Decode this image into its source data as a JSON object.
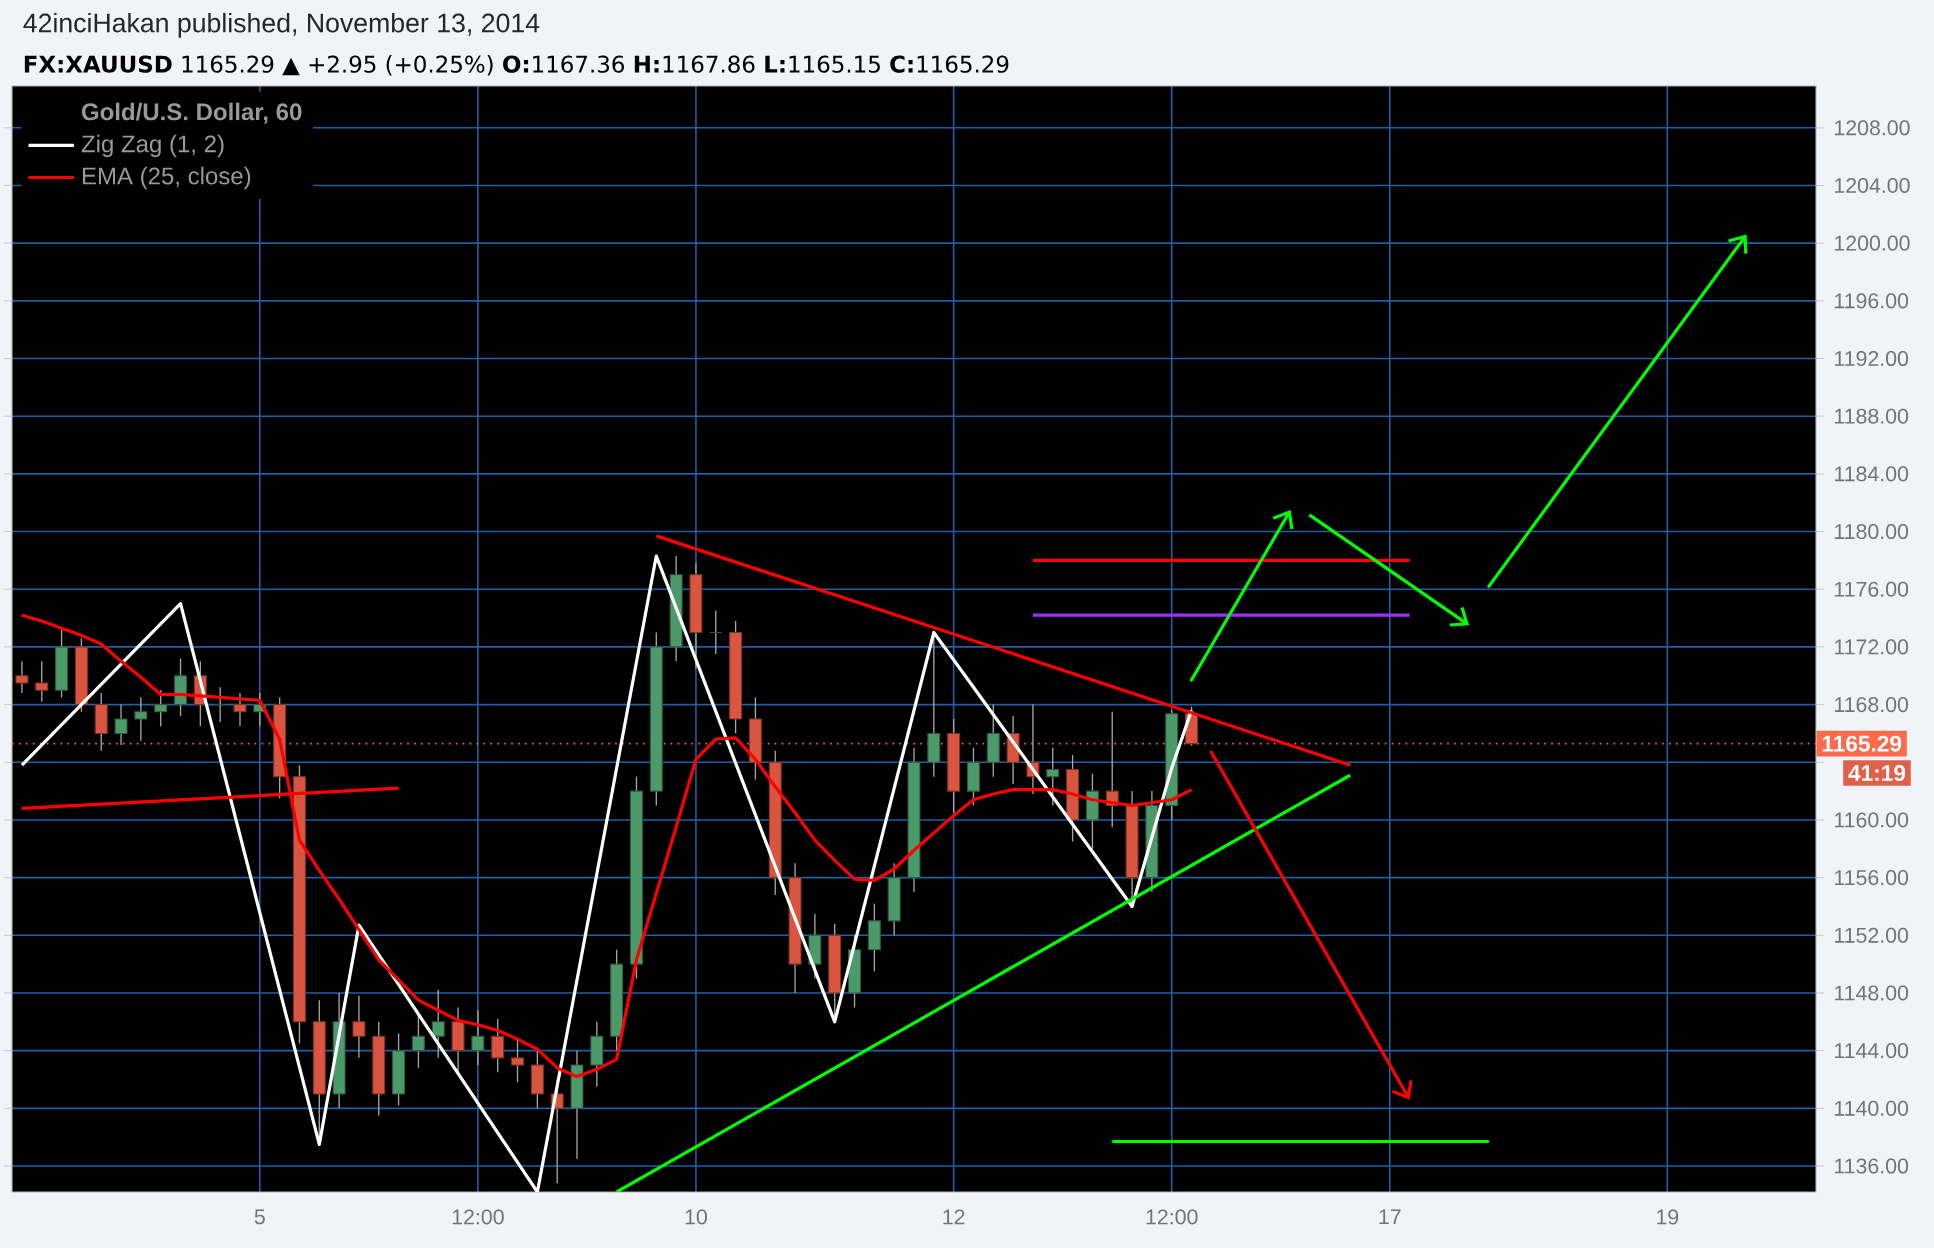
{
  "chart_data": {
    "type": "candlestick",
    "subtitle": "42inciHakan published, November 13, 2014",
    "title": "**FX:XAUUSD** 1165.29 ▲ +2.95 (+0.25%) **O:**1167.36 **H:**1167.86 **L:**1165.15 **C:**1165.29",
    "legend_title": "Gold/U.S. Dollar, 60",
    "legend": "top left",
    "grid": true,
    "ylim": [
      1134.2,
      1210.9
    ],
    "yticks": [
      {
        "value": 1136,
        "label": "1136.00"
      },
      {
        "value": 1140,
        "label": "1140.00"
      },
      {
        "value": 1144,
        "label": "1144.00"
      },
      {
        "value": 1148,
        "label": "1148.00"
      },
      {
        "value": 1152,
        "label": "1152.00"
      },
      {
        "value": 1156,
        "label": "1156.00"
      },
      {
        "value": 1160,
        "label": "1160.00"
      },
      {
        "value": 1164,
        "label": null
      },
      {
        "value": 1168,
        "label": "1168.00"
      },
      {
        "value": 1172,
        "label": "1172.00"
      },
      {
        "value": 1176,
        "label": "1176.00"
      },
      {
        "value": 1180,
        "label": "1180.00"
      },
      {
        "value": 1184,
        "label": "1184.00"
      },
      {
        "value": 1188,
        "label": "1188.00"
      },
      {
        "value": 1192,
        "label": "1192.00"
      },
      {
        "value": 1196,
        "label": "1196.00"
      },
      {
        "value": 1200,
        "label": "1200.00"
      },
      {
        "value": 1204,
        "label": "1204.00"
      },
      {
        "value": 1208,
        "label": "1208.00"
      }
    ],
    "categories": [
      null,
      null,
      null,
      null,
      null,
      null,
      null,
      null,
      null,
      null,
      null,
      null,
      "5",
      null,
      null,
      null,
      null,
      null,
      null,
      null,
      null,
      null,
      null,
      "12:00",
      null,
      null,
      null,
      null,
      null,
      null,
      null,
      null,
      null,
      null,
      "10",
      null,
      null,
      null,
      null,
      null,
      null,
      null,
      null,
      null,
      null,
      null,
      null,
      "12",
      null,
      null,
      null,
      null,
      null,
      null,
      null,
      null,
      null,
      null,
      "12:00",
      null,
      null,
      null,
      null,
      null,
      null,
      null,
      null,
      null,
      null,
      "17",
      null,
      null,
      null,
      null,
      null,
      null,
      null,
      null,
      null,
      null,
      null,
      null,
      null,
      "19",
      null,
      null,
      null,
      null,
      null,
      null,
      null
    ],
    "ohlc": [
      [
        1170,
        1171,
        1168.8,
        1169.5
      ],
      [
        1169.5,
        1171,
        1168.2,
        1169
      ],
      [
        1169,
        1173.2,
        1168.5,
        1172
      ],
      [
        1172,
        1172.6,
        1167.5,
        1168
      ],
      [
        1168,
        1168.8,
        1164.8,
        1166
      ],
      [
        1166,
        1168,
        1165.2,
        1167
      ],
      [
        1167,
        1168.5,
        1165.5,
        1167.5
      ],
      [
        1167.5,
        1169,
        1166.5,
        1168
      ],
      [
        1168,
        1171.2,
        1167.2,
        1170
      ],
      [
        1170,
        1171,
        1166.5,
        1168
      ],
      [
        1168,
        1169.2,
        1166.8,
        1168
      ],
      [
        1168,
        1168.8,
        1166.5,
        1167.5
      ],
      [
        1167.5,
        1168.8,
        1166.5,
        1168
      ],
      [
        1168,
        1168.5,
        1161.5,
        1163
      ],
      [
        1163,
        1163.8,
        1144.5,
        1146
      ],
      [
        1146,
        1147.5,
        1137.6,
        1141
      ],
      [
        1141,
        1148,
        1140,
        1146
      ],
      [
        1146,
        1147.8,
        1143.5,
        1145
      ],
      [
        1145,
        1146,
        1139.5,
        1141
      ],
      [
        1141,
        1145.2,
        1140.2,
        1144
      ],
      [
        1144,
        1146.5,
        1142.8,
        1145
      ],
      [
        1145,
        1148.2,
        1143.5,
        1146
      ],
      [
        1146,
        1147,
        1142.5,
        1144
      ],
      [
        1144,
        1146.8,
        1143,
        1145
      ],
      [
        1145,
        1146.2,
        1142.5,
        1143.5
      ],
      [
        1143.5,
        1144.8,
        1141.8,
        1143
      ],
      [
        1143,
        1144,
        1140,
        1141
      ],
      [
        1141,
        1142,
        1134.8,
        1140
      ],
      [
        1140,
        1144,
        1136.5,
        1143
      ],
      [
        1143,
        1146,
        1141.5,
        1145
      ],
      [
        1145,
        1151,
        1144,
        1150
      ],
      [
        1150,
        1163,
        1149,
        1162
      ],
      [
        1162,
        1173,
        1161,
        1172
      ],
      [
        1172,
        1178.3,
        1171,
        1177
      ],
      [
        1177,
        1177.8,
        1170.5,
        1173
      ],
      [
        1173,
        1174.5,
        1171.5,
        1173
      ],
      [
        1173,
        1173.8,
        1166,
        1167
      ],
      [
        1167,
        1168.5,
        1162.8,
        1164
      ],
      [
        1164,
        1164.8,
        1154.8,
        1156
      ],
      [
        1156,
        1157,
        1148,
        1150
      ],
      [
        1150,
        1153.5,
        1149,
        1152
      ],
      [
        1152,
        1152.8,
        1146.2,
        1148
      ],
      [
        1148,
        1152,
        1147,
        1151
      ],
      [
        1151,
        1154.2,
        1149.5,
        1153
      ],
      [
        1153,
        1157,
        1152,
        1156
      ],
      [
        1156,
        1165,
        1155,
        1164
      ],
      [
        1164,
        1173,
        1163,
        1166
      ],
      [
        1166,
        1167,
        1160.5,
        1162
      ],
      [
        1162,
        1165,
        1161,
        1164
      ],
      [
        1164,
        1168,
        1163,
        1166
      ],
      [
        1166,
        1167.2,
        1162.5,
        1164
      ],
      [
        1164,
        1168,
        1161.8,
        1163
      ],
      [
        1163,
        1165,
        1161,
        1163.5
      ],
      [
        1163.5,
        1164.5,
        1158.5,
        1160
      ],
      [
        1160,
        1163.2,
        1158,
        1162
      ],
      [
        1162,
        1167.5,
        1159.5,
        1161
      ],
      [
        1161,
        1162,
        1154.2,
        1156
      ],
      [
        1156,
        1162,
        1155,
        1161
      ],
      [
        1161,
        1167.6,
        1160,
        1167.36
      ],
      [
        1167.36,
        1167.86,
        1165.15,
        1165.29
      ],
      null,
      null,
      null,
      null,
      null,
      null,
      null,
      null,
      null,
      null,
      null,
      null,
      null,
      null,
      null,
      null,
      null,
      null,
      null,
      null,
      null,
      null,
      null,
      null,
      null,
      null,
      null,
      null,
      null,
      null,
      null
    ],
    "series": [
      {
        "type": "line",
        "name": "Zig Zag (1, 2)",
        "color": "#ffffff",
        "values": [
          1163.8,
          null,
          null,
          null,
          null,
          null,
          null,
          null,
          1175,
          null,
          null,
          null,
          null,
          null,
          null,
          1137.5,
          null,
          1152.7,
          null,
          null,
          null,
          null,
          null,
          null,
          null,
          null,
          1134.2,
          null,
          null,
          null,
          null,
          null,
          1178.3,
          null,
          null,
          null,
          null,
          null,
          null,
          null,
          null,
          1146,
          null,
          null,
          null,
          null,
          1173,
          null,
          null,
          null,
          null,
          null,
          null,
          null,
          null,
          null,
          1154,
          null,
          1163.6,
          1167.6,
          null,
          null,
          null,
          null,
          null,
          null,
          null,
          null,
          null,
          null,
          null,
          null,
          null,
          null,
          null,
          null,
          null,
          null,
          null,
          null,
          null,
          null,
          null,
          null,
          null,
          null,
          null,
          null,
          null,
          null,
          null
        ]
      },
      {
        "type": "line",
        "name": "EMA (25, close)",
        "color": "#ff0000",
        "values": [
          1174.2,
          1173.8,
          1173.3,
          1172.8,
          1172.2,
          1171.0,
          1169.9,
          1168.7,
          1168.7,
          1168.6,
          1168.5,
          1168.4,
          1168.3,
          1165.6,
          1158.6,
          1156.5,
          1154.5,
          1152.4,
          1150.3,
          1148.9,
          1147.5,
          1146.8,
          1146.1,
          1145.8,
          1145.4,
          1144.8,
          1144.1,
          1142.8,
          1142.2,
          1142.7,
          1143.4,
          1150.3,
          1154.9,
          1159.5,
          1164.2,
          1165.6,
          1165.7,
          1164.2,
          1162.3,
          1160.5,
          1158.6,
          1157.2,
          1155.9,
          1155.8,
          1156.6,
          1157.9,
          1159.1,
          1160.3,
          1161.4,
          1161.8,
          1162.1,
          1162.1,
          1162.1,
          1161.8,
          1161.4,
          1161.2,
          1161,
          1161.2,
          1161.4,
          1162.1,
          null,
          null,
          null,
          null,
          null,
          null,
          null,
          null,
          null,
          null,
          null,
          null,
          null,
          null,
          null,
          null,
          null,
          null,
          null,
          null,
          null,
          null,
          null,
          null,
          null,
          null,
          null,
          null,
          null,
          null,
          null
        ]
      },
      {
        "type": "line",
        "color": "#ff0000",
        "values": [
          null,
          null,
          null,
          null,
          null,
          null,
          null,
          null,
          null,
          null,
          null,
          null,
          null,
          null,
          null,
          null,
          null,
          null,
          null,
          null,
          null,
          null,
          null,
          null,
          null,
          null,
          null,
          null,
          null,
          null,
          null,
          null,
          1179.7,
          null,
          null,
          null,
          null,
          null,
          null,
          null,
          null,
          null,
          null,
          null,
          null,
          null,
          null,
          null,
          null,
          null,
          null,
          null,
          null,
          null,
          null,
          null,
          null,
          null,
          null,
          null,
          null,
          null,
          null,
          null,
          null,
          null,
          null,
          1163.8,
          null,
          null,
          null,
          null,
          null,
          null,
          null,
          null,
          null,
          null,
          null,
          null,
          null,
          null,
          null,
          null,
          null,
          null,
          null,
          null,
          null,
          null,
          null
        ]
      },
      {
        "type": "line",
        "color": "#00ff00",
        "values": [
          null,
          null,
          null,
          null,
          null,
          null,
          null,
          null,
          null,
          null,
          null,
          null,
          null,
          null,
          null,
          null,
          null,
          null,
          null,
          null,
          null,
          null,
          null,
          null,
          null,
          null,
          null,
          null,
          null,
          null,
          1134.2,
          null,
          null,
          null,
          null,
          null,
          null,
          null,
          null,
          null,
          null,
          null,
          null,
          null,
          null,
          null,
          null,
          null,
          null,
          null,
          null,
          null,
          null,
          null,
          null,
          null,
          null,
          null,
          null,
          null,
          null,
          null,
          null,
          null,
          null,
          null,
          null,
          1163.1,
          null,
          null,
          null,
          null,
          null,
          null,
          null,
          null,
          null,
          null,
          null,
          null,
          null,
          null,
          null,
          null,
          null,
          null,
          null,
          null,
          null,
          null,
          null
        ]
      },
      {
        "type": "line",
        "color": "#ff0000",
        "values": [
          1160.8,
          null,
          null,
          null,
          null,
          null,
          null,
          null,
          null,
          null,
          null,
          null,
          null,
          null,
          null,
          null,
          null,
          null,
          null,
          1162.2,
          null,
          null,
          null,
          null,
          null,
          null,
          null,
          null,
          null,
          null,
          null,
          null,
          null,
          null,
          null,
          null,
          null,
          null,
          null,
          null,
          null,
          null,
          null,
          null,
          null,
          null,
          null,
          null,
          null,
          null,
          null,
          null,
          null,
          null,
          null,
          null,
          null,
          null,
          null,
          null,
          null,
          null,
          null,
          null,
          null,
          null,
          null,
          null,
          null,
          null,
          null,
          null,
          null,
          null,
          null,
          null,
          null,
          null,
          null,
          null,
          null,
          null,
          null,
          null,
          null,
          null,
          null,
          null,
          null,
          null,
          null
        ]
      },
      {
        "type": "line",
        "color": "#ff0000",
        "values": [
          null,
          null,
          null,
          null,
          null,
          null,
          null,
          null,
          null,
          null,
          null,
          null,
          null,
          null,
          null,
          null,
          null,
          null,
          null,
          null,
          null,
          null,
          null,
          null,
          null,
          null,
          null,
          null,
          null,
          null,
          null,
          null,
          null,
          null,
          null,
          null,
          null,
          null,
          null,
          null,
          null,
          null,
          null,
          null,
          null,
          null,
          null,
          null,
          null,
          null,
          null,
          1178.0,
          null,
          null,
          null,
          null,
          null,
          null,
          null,
          null,
          null,
          null,
          null,
          null,
          null,
          null,
          null,
          null,
          null,
          null,
          1178.0,
          null,
          null,
          null,
          null,
          null,
          null,
          null,
          null,
          null,
          null,
          null,
          null,
          null,
          null,
          null,
          null,
          null,
          null,
          null,
          null
        ]
      },
      {
        "type": "line",
        "color": "#9b30ff",
        "values": [
          null,
          null,
          null,
          null,
          null,
          null,
          null,
          null,
          null,
          null,
          null,
          null,
          null,
          null,
          null,
          null,
          null,
          null,
          null,
          null,
          null,
          null,
          null,
          null,
          null,
          null,
          null,
          null,
          null,
          null,
          null,
          null,
          null,
          null,
          null,
          null,
          null,
          null,
          null,
          null,
          null,
          null,
          null,
          null,
          null,
          null,
          null,
          null,
          null,
          null,
          null,
          1174.2,
          null,
          null,
          null,
          null,
          null,
          null,
          null,
          null,
          null,
          null,
          null,
          null,
          null,
          null,
          null,
          null,
          null,
          null,
          1174.2,
          null,
          null,
          null,
          null,
          null,
          null,
          null,
          null,
          null,
          null,
          null,
          null,
          null,
          null,
          null,
          null,
          null,
          null,
          null,
          null
        ]
      },
      {
        "type": "line",
        "color": "#00ff00",
        "values": [
          null,
          null,
          null,
          null,
          null,
          null,
          null,
          null,
          null,
          null,
          null,
          null,
          null,
          null,
          null,
          null,
          null,
          null,
          null,
          null,
          null,
          null,
          null,
          null,
          null,
          null,
          null,
          null,
          null,
          null,
          null,
          null,
          null,
          null,
          null,
          null,
          null,
          null,
          null,
          null,
          null,
          null,
          null,
          null,
          null,
          null,
          null,
          null,
          null,
          null,
          null,
          null,
          null,
          null,
          null,
          1137.7,
          null,
          null,
          null,
          null,
          null,
          null,
          null,
          null,
          null,
          null,
          null,
          null,
          null,
          null,
          null,
          null,
          null,
          null,
          1137.7,
          null,
          null,
          null,
          null,
          null,
          null,
          null,
          null,
          null,
          null,
          null,
          null,
          null,
          null,
          null,
          null
        ]
      },
      {
        "type": "line",
        "color": "#00ff00",
        "values": [
          null,
          null,
          null,
          null,
          null,
          null,
          null,
          null,
          null,
          null,
          null,
          null,
          null,
          null,
          null,
          null,
          null,
          null,
          null,
          null,
          null,
          null,
          null,
          null,
          null,
          null,
          null,
          null,
          null,
          null,
          null,
          null,
          null,
          null,
          null,
          null,
          null,
          null,
          null,
          null,
          null,
          null,
          null,
          null,
          null,
          null,
          null,
          null,
          null,
          null,
          null,
          null,
          null,
          null,
          null,
          null,
          null,
          null,
          null,
          1169.7,
          null,
          null,
          null,
          null,
          1181.5,
          null,
          null,
          null,
          null,
          null,
          null,
          null,
          null,
          null,
          null,
          null,
          null,
          null,
          null,
          null,
          null,
          null,
          null,
          null,
          null,
          null,
          null,
          null,
          null,
          null,
          null
        ]
      },
      {
        "type": "line",
        "color": "#00ff00",
        "values": [
          null,
          null,
          null,
          null,
          null,
          null,
          null,
          null,
          null,
          null,
          null,
          null,
          null,
          null,
          null,
          null,
          null,
          null,
          null,
          null,
          null,
          null,
          null,
          null,
          null,
          null,
          null,
          null,
          null,
          null,
          null,
          null,
          null,
          null,
          null,
          null,
          null,
          null,
          null,
          null,
          null,
          null,
          null,
          null,
          null,
          null,
          null,
          null,
          null,
          null,
          null,
          null,
          null,
          null,
          null,
          null,
          null,
          null,
          null,
          null,
          null,
          null,
          null,
          null,
          null,
          1181.1,
          null,
          null,
          null,
          null,
          null,
          null,
          null,
          1173.5,
          null,
          null,
          null,
          null,
          null,
          null,
          null,
          null,
          null,
          null,
          null,
          null,
          null,
          null,
          null,
          null,
          null
        ]
      },
      {
        "type": "line",
        "color": "#00ff00",
        "values": [
          null,
          null,
          null,
          null,
          null,
          null,
          null,
          null,
          null,
          null,
          null,
          null,
          null,
          null,
          null,
          null,
          null,
          null,
          null,
          null,
          null,
          null,
          null,
          null,
          null,
          null,
          null,
          null,
          null,
          null,
          null,
          null,
          null,
          null,
          null,
          null,
          null,
          null,
          null,
          null,
          null,
          null,
          null,
          null,
          null,
          null,
          null,
          null,
          null,
          null,
          null,
          null,
          null,
          null,
          null,
          null,
          null,
          null,
          null,
          null,
          null,
          null,
          null,
          null,
          null,
          null,
          null,
          null,
          null,
          null,
          null,
          null,
          null,
          null,
          1176.2,
          null,
          null,
          null,
          null,
          null,
          null,
          null,
          null,
          null,
          null,
          null,
          null,
          1200.6,
          null,
          null,
          null
        ]
      },
      {
        "type": "line",
        "color": "#ff0000",
        "values": [
          null,
          null,
          null,
          null,
          null,
          null,
          null,
          null,
          null,
          null,
          null,
          null,
          null,
          null,
          null,
          null,
          null,
          null,
          null,
          null,
          null,
          null,
          null,
          null,
          null,
          null,
          null,
          null,
          null,
          null,
          null,
          null,
          null,
          null,
          null,
          null,
          null,
          null,
          null,
          null,
          null,
          null,
          null,
          null,
          null,
          null,
          null,
          null,
          null,
          null,
          null,
          null,
          null,
          null,
          null,
          null,
          null,
          null,
          null,
          null,
          1164.7,
          null,
          null,
          null,
          null,
          null,
          null,
          null,
          null,
          null,
          1140.6,
          null,
          null,
          null,
          null,
          null,
          null,
          null,
          null,
          null,
          null,
          null,
          null,
          null,
          null,
          null,
          null,
          null,
          null,
          null,
          null
        ]
      }
    ],
    "ref_lines": [
      {
        "axis": "y",
        "value": 1165.29,
        "label": "1165.29",
        "color": "#ff6a4d",
        "line_style": "dotted"
      }
    ],
    "annotations": [
      "41:19"
    ]
  }
}
